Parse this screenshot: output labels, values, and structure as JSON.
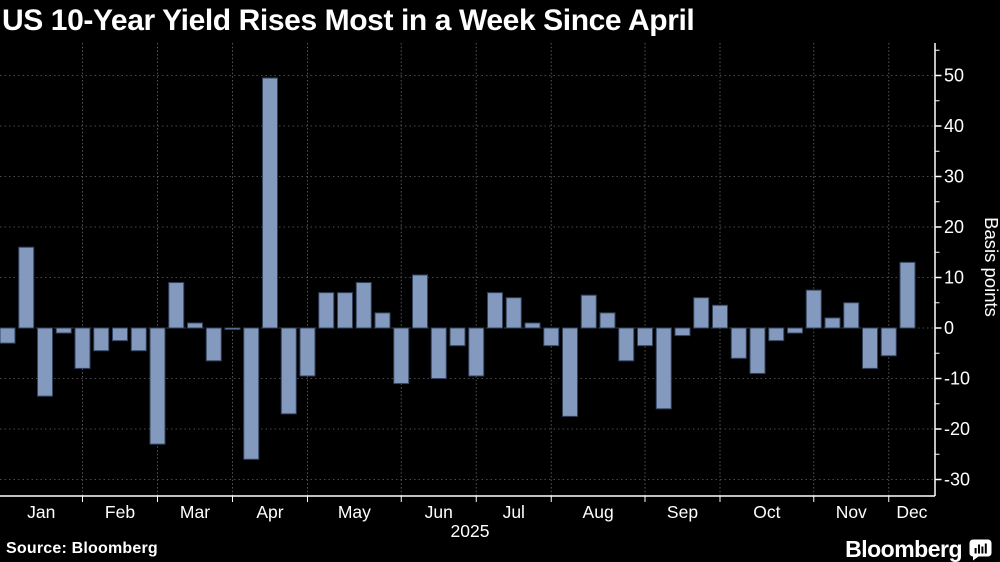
{
  "title": "US 10-Year Yield Rises Most in a Week Since April",
  "source": "Source: Bloomberg",
  "brand": {
    "wordmark": "Bloomberg",
    "icon": "bloomberg-bug-icon"
  },
  "colors": {
    "background": "#000000",
    "bar_fill": "#8399BE",
    "bar_stroke": "#32435F",
    "axis": "#FFFFFF",
    "text": "#FFFFFF",
    "grid_horizontal": "#4A4A4A",
    "grid_vertical": "#575757"
  },
  "chart_data": {
    "type": "bar",
    "title": "US 10-Year Yield Rises Most in a Week Since April",
    "ylabel": "Basis points",
    "xlabel": "2025",
    "x_unit": "week",
    "ylim": [
      -33.5,
      56.5
    ],
    "grid": {
      "horizontal": "dotted",
      "vertical": "dotted monthly boundaries"
    },
    "legend": null,
    "y_ticks_major": [
      50,
      40,
      30,
      20,
      10,
      0,
      -10,
      -20,
      -30
    ],
    "y_ticks_minor": [
      55,
      45,
      35,
      25,
      15,
      5,
      -5,
      -15,
      -25
    ],
    "months": [
      {
        "label": "Jan",
        "weeks": 5
      },
      {
        "label": "Feb",
        "weeks": 4
      },
      {
        "label": "Mar",
        "weeks": 4
      },
      {
        "label": "Apr",
        "weeks": 4
      },
      {
        "label": "May",
        "weeks": 5
      },
      {
        "label": "Jun",
        "weeks": 4
      },
      {
        "label": "Jul",
        "weeks": 4
      },
      {
        "label": "Aug",
        "weeks": 5
      },
      {
        "label": "Sep",
        "weeks": 4
      },
      {
        "label": "Oct",
        "weeks": 5
      },
      {
        "label": "Nov",
        "weeks": 4
      },
      {
        "label": "Dec",
        "weeks": 1
      }
    ],
    "values": [
      -3,
      16,
      -13.5,
      -1,
      -8,
      -4.5,
      -2.5,
      -4.5,
      -23,
      9,
      1,
      -6.5,
      -0.3,
      -26,
      49.5,
      -17,
      -9.5,
      7,
      7,
      9,
      3,
      -11,
      10.5,
      -10,
      -3.5,
      -9.5,
      7,
      6,
      1,
      -3.5,
      -17.5,
      6.5,
      3,
      -6.5,
      -3.5,
      -16,
      -1.5,
      6,
      4.5,
      -6,
      -9,
      -2.5,
      -1,
      7.5,
      2,
      5,
      -8,
      -5.5,
      13
    ]
  }
}
